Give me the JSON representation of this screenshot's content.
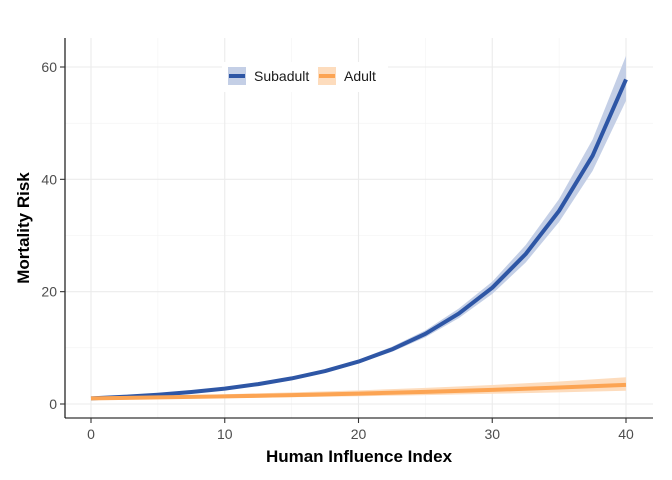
{
  "chart_data": {
    "type": "line",
    "title": "",
    "xlabel": "Human Influence Index",
    "ylabel": "Mortality Risk",
    "xlim": [
      -2,
      42
    ],
    "ylim": [
      -2.5,
      65
    ],
    "xticks": [
      0,
      10,
      20,
      30,
      40
    ],
    "yticks": [
      0,
      20,
      40,
      60
    ],
    "grid": true,
    "legend_position": "top-center",
    "series": [
      {
        "name": "Subadult",
        "color": "#2e56a5",
        "band_color": "#c4cfe6",
        "x": [
          0,
          2.5,
          5,
          7.5,
          10,
          12.5,
          15,
          17.5,
          20,
          22.5,
          25,
          27.5,
          30,
          32.5,
          35,
          37.5,
          40
        ],
        "y": [
          1.0,
          1.29,
          1.66,
          2.13,
          2.75,
          3.54,
          4.56,
          5.86,
          7.55,
          9.72,
          12.5,
          16.1,
          20.7,
          26.7,
          34.4,
          44.2,
          57.8
        ],
        "lower": [
          0.95,
          1.23,
          1.59,
          2.05,
          2.64,
          3.4,
          4.38,
          5.62,
          7.22,
          9.28,
          11.9,
          15.3,
          19.6,
          25.2,
          32.4,
          41.5,
          54.0
        ],
        "upper": [
          1.05,
          1.35,
          1.73,
          2.22,
          2.86,
          3.68,
          4.75,
          6.11,
          7.89,
          10.2,
          13.1,
          17.0,
          21.8,
          28.3,
          36.5,
          47.1,
          62.0
        ]
      },
      {
        "name": "Adult",
        "color": "#fca453",
        "band_color": "#fddcbd",
        "x": [
          0,
          5,
          10,
          15,
          20,
          25,
          30,
          35,
          40
        ],
        "y": [
          1.0,
          1.17,
          1.36,
          1.59,
          1.85,
          2.16,
          2.51,
          2.93,
          3.4
        ],
        "lower": [
          0.8,
          0.92,
          1.05,
          1.2,
          1.38,
          1.58,
          1.81,
          2.07,
          2.35
        ],
        "upper": [
          1.25,
          1.48,
          1.75,
          2.06,
          2.43,
          2.87,
          3.39,
          4.01,
          4.75
        ]
      }
    ]
  }
}
